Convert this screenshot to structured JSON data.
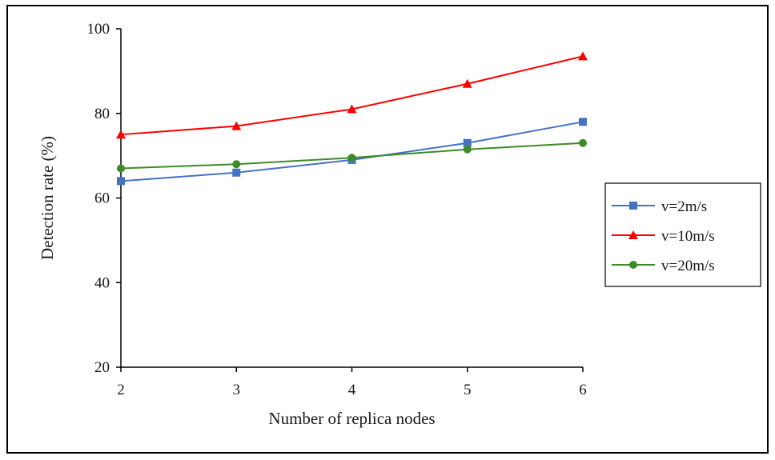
{
  "chart_data": {
    "type": "line",
    "title": "",
    "xlabel": "Number of replica nodes",
    "ylabel": "Detection rate (%)",
    "x": [
      2,
      3,
      4,
      5,
      6
    ],
    "xticks": [
      "2",
      "3",
      "4",
      "5",
      "6"
    ],
    "ylim": [
      20,
      100
    ],
    "yticks": [
      "20",
      "40",
      "60",
      "80",
      "100"
    ],
    "grid": false,
    "legend_position": "right",
    "series": [
      {
        "name": "v=2m/s",
        "values": [
          64,
          66,
          69,
          73,
          78
        ],
        "color": "#4472c4",
        "marker": "square"
      },
      {
        "name": "v=10m/s",
        "values": [
          75,
          77,
          81,
          87,
          93.5
        ],
        "color": "#ff0000",
        "marker": "triangle"
      },
      {
        "name": "v=20m/s",
        "values": [
          67,
          68,
          69.5,
          71.5,
          73
        ],
        "color": "#3d8b27",
        "marker": "circle"
      }
    ]
  }
}
